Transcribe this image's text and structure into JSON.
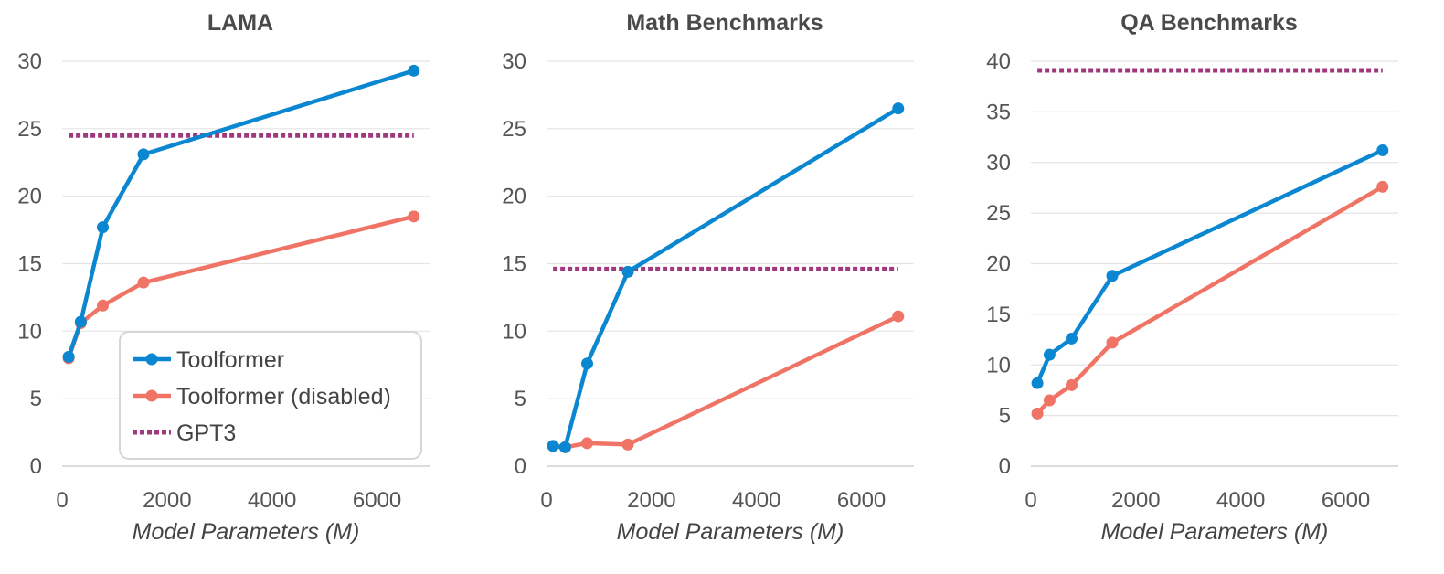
{
  "legend": {
    "entries": [
      {
        "name": "Toolformer",
        "color": "#0a87d0",
        "style": "solid-marker"
      },
      {
        "name": "Toolformer (disabled)",
        "color": "#f07466",
        "style": "solid-marker"
      },
      {
        "name": "GPT3",
        "color": "#a0387e",
        "style": "dotted"
      }
    ],
    "placement": "inside-bottom-right of first panel"
  },
  "chart_data": [
    {
      "type": "line",
      "title": "LAMA",
      "xlabel": "Model Parameters (M)",
      "ylabel": "",
      "xlim": [
        0,
        7000
      ],
      "ylim": [
        0,
        30
      ],
      "xticks": [
        0,
        2000,
        4000,
        6000
      ],
      "yticks": [
        0,
        5,
        10,
        15,
        20,
        25,
        30
      ],
      "grid": "horizontal",
      "series": [
        {
          "name": "Toolformer",
          "color": "#0a87d0",
          "x": [
            124,
            355,
            775,
            1550,
            6700
          ],
          "y": [
            8.1,
            10.7,
            17.7,
            23.1,
            29.3
          ]
        },
        {
          "name": "Toolformer (disabled)",
          "color": "#f07466",
          "x": [
            124,
            355,
            775,
            1550,
            6700
          ],
          "y": [
            8.0,
            10.6,
            11.9,
            13.6,
            18.5
          ]
        }
      ],
      "reference_lines": [
        {
          "name": "GPT3",
          "color": "#a0387e",
          "y": 24.5,
          "x": [
            124,
            6700
          ]
        }
      ]
    },
    {
      "type": "line",
      "title": "Math Benchmarks",
      "xlabel": "Model Parameters (M)",
      "ylabel": "",
      "xlim": [
        0,
        7000
      ],
      "ylim": [
        0,
        30
      ],
      "xticks": [
        0,
        2000,
        4000,
        6000
      ],
      "yticks": [
        0,
        5,
        10,
        15,
        20,
        25,
        30
      ],
      "grid": "horizontal",
      "series": [
        {
          "name": "Toolformer",
          "color": "#0a87d0",
          "x": [
            124,
            355,
            775,
            1550,
            6700
          ],
          "y": [
            1.5,
            1.4,
            7.6,
            14.4,
            26.5
          ]
        },
        {
          "name": "Toolformer (disabled)",
          "color": "#f07466",
          "x": [
            124,
            355,
            775,
            1550,
            6700
          ],
          "y": [
            1.5,
            1.4,
            1.7,
            1.6,
            11.1
          ]
        }
      ],
      "reference_lines": [
        {
          "name": "GPT3",
          "color": "#a0387e",
          "y": 14.6,
          "x": [
            124,
            6700
          ]
        }
      ]
    },
    {
      "type": "line",
      "title": "QA Benchmarks",
      "xlabel": "Model Parameters (M)",
      "ylabel": "",
      "xlim": [
        0,
        7000
      ],
      "ylim": [
        0,
        40
      ],
      "xticks": [
        0,
        2000,
        4000,
        6000
      ],
      "yticks": [
        0,
        5,
        10,
        15,
        20,
        25,
        30,
        35,
        40
      ],
      "grid": "horizontal",
      "series": [
        {
          "name": "Toolformer",
          "color": "#0a87d0",
          "x": [
            124,
            355,
            775,
            1550,
            6700
          ],
          "y": [
            8.2,
            11.0,
            12.6,
            18.8,
            31.2
          ]
        },
        {
          "name": "Toolformer (disabled)",
          "color": "#f07466",
          "x": [
            124,
            355,
            775,
            1550,
            6700
          ],
          "y": [
            5.2,
            6.5,
            8.0,
            12.2,
            27.6
          ]
        }
      ],
      "reference_lines": [
        {
          "name": "GPT3",
          "color": "#a0387e",
          "y": 39.1,
          "x": [
            124,
            6700
          ]
        }
      ]
    }
  ]
}
